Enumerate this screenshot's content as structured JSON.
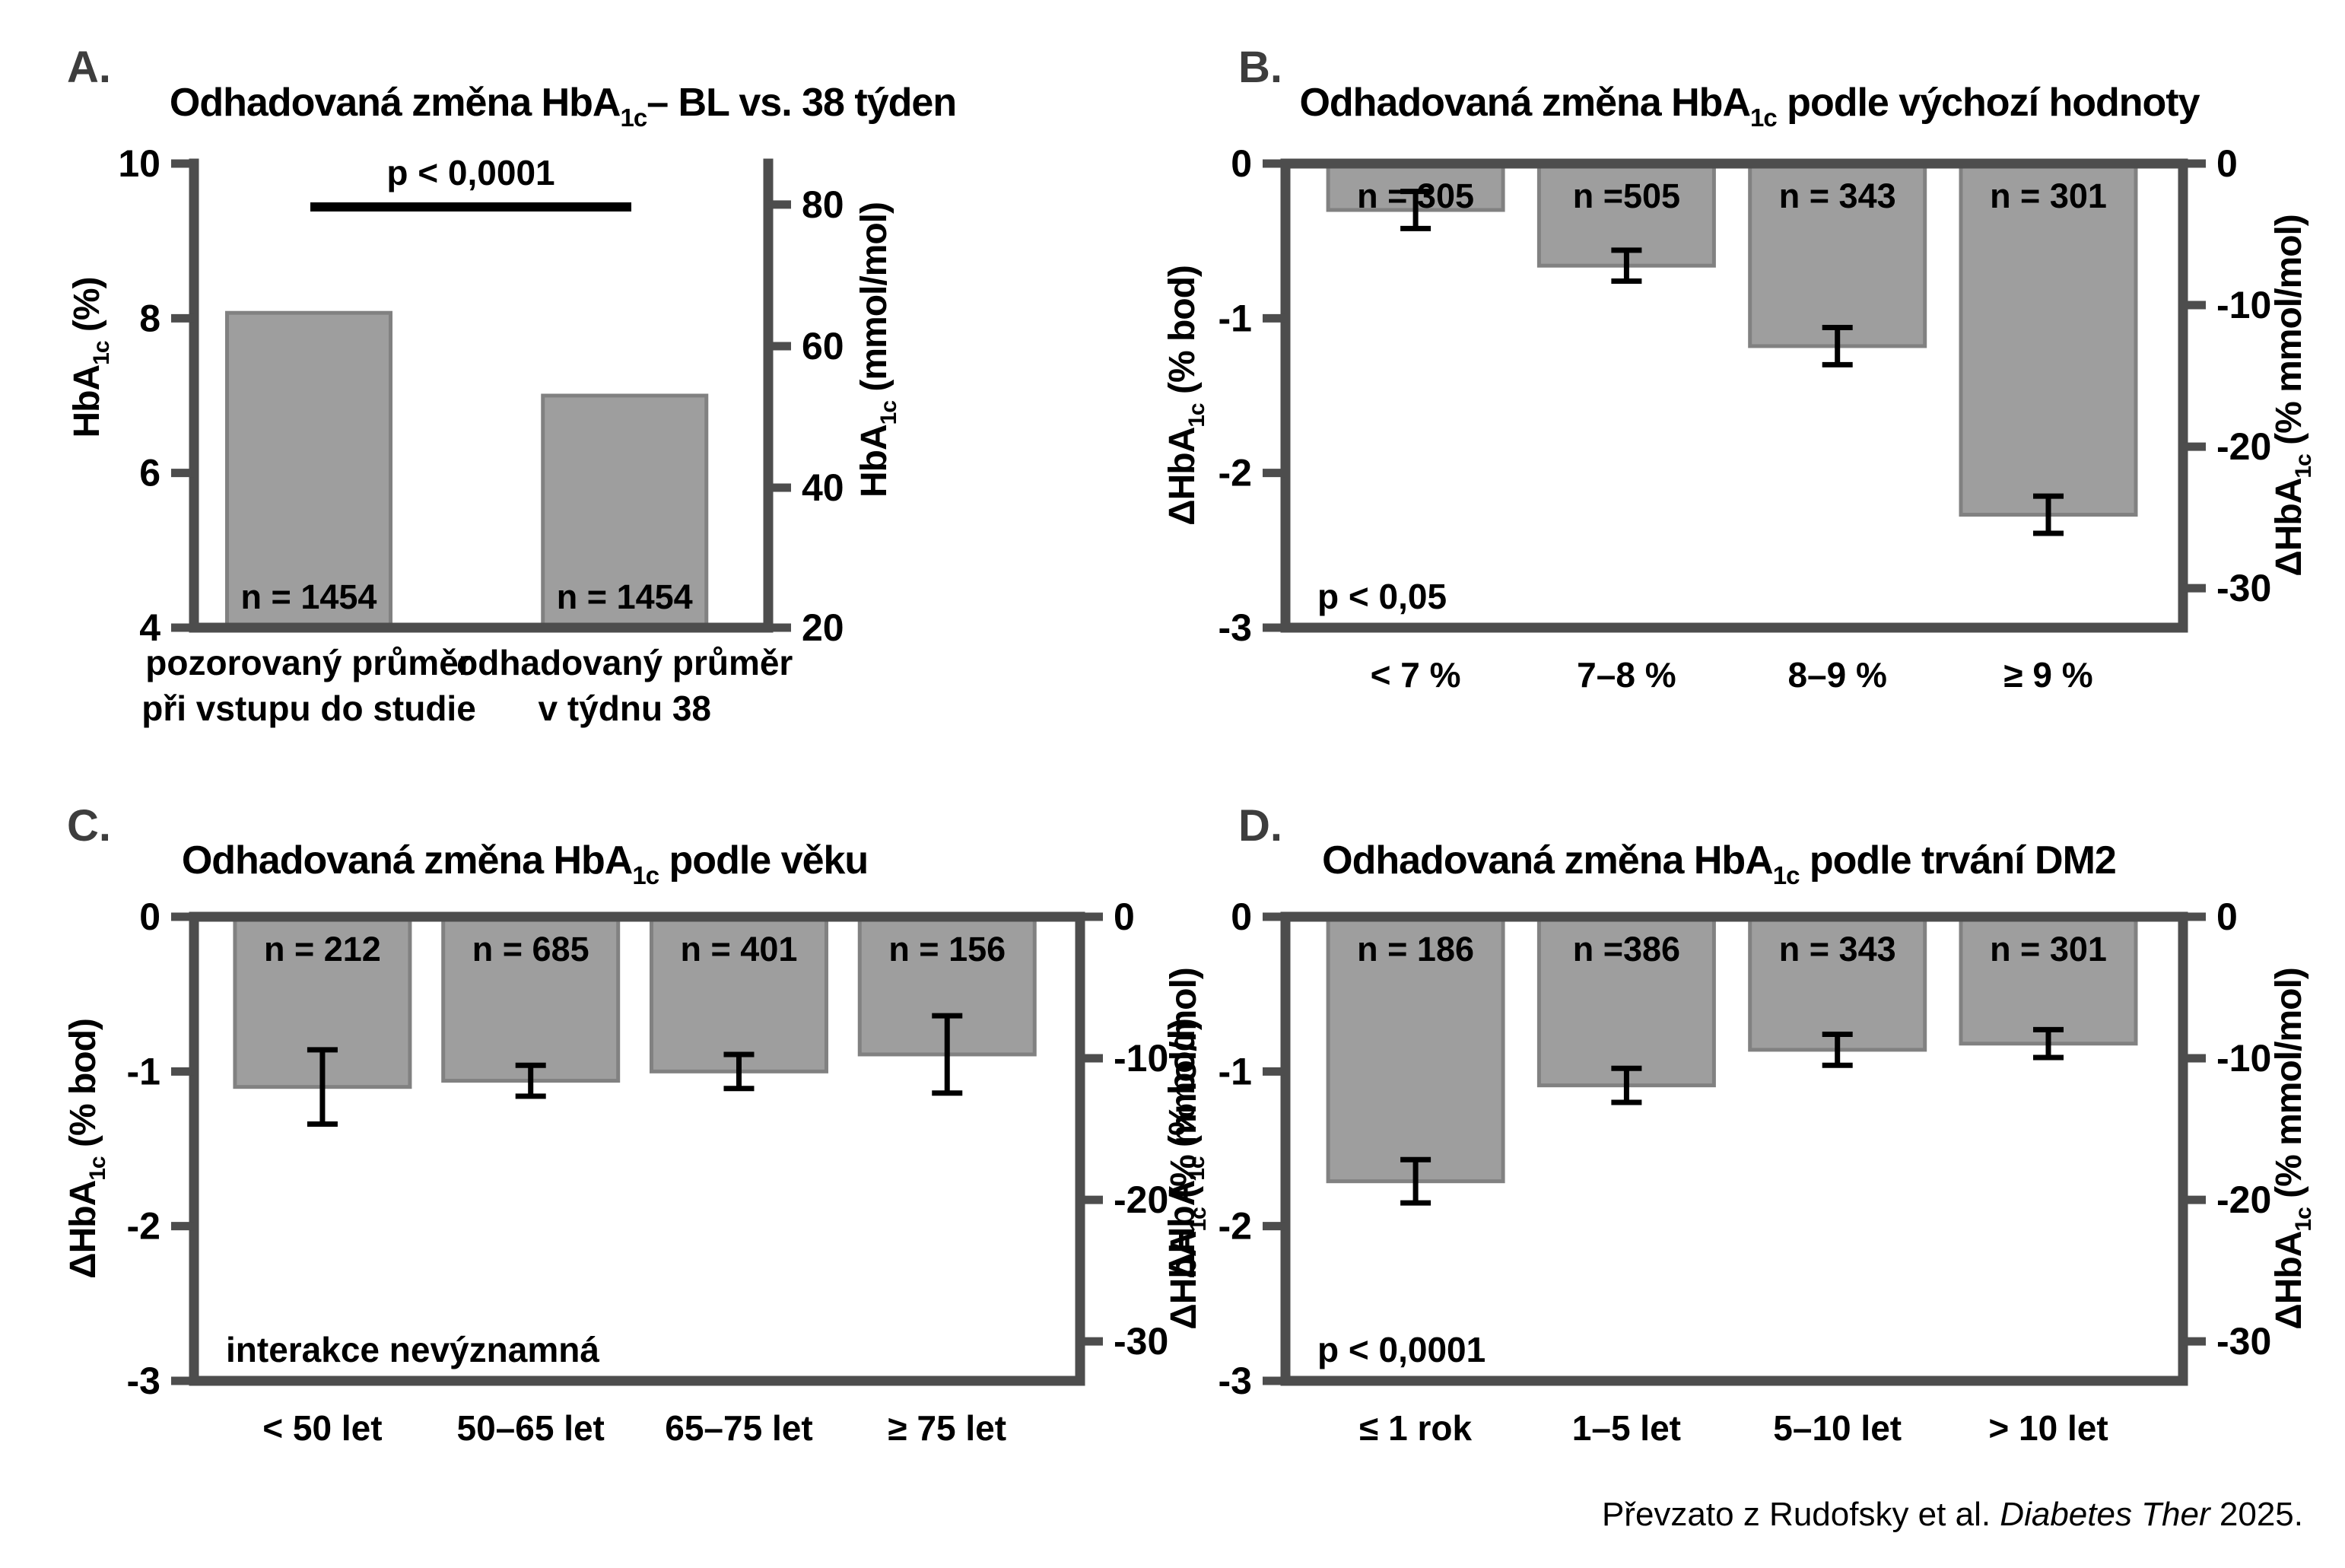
{
  "colors": {
    "bar_fill": "#9e9e9e",
    "bar_border": "#818181",
    "axis": "#4d4d4d",
    "text": "#000000",
    "panel_letter": "#3d3d3d",
    "error_bar": "#000000"
  },
  "footer": {
    "pre": "Převzato z Rudofsky et al. ",
    "italic": "Diabetes Ther",
    "post": " 2025."
  },
  "chart_data": [
    {
      "panel": "A",
      "letter": "A.",
      "type": "bar",
      "title": {
        "pre": "Odhadovaná změna HbA",
        "sub": "1c",
        "post": "– BL vs. 38 týden"
      },
      "ylabel_left": {
        "pre": "HbA",
        "sub": "1c",
        "post": " (%)"
      },
      "ylabel_right": {
        "pre": "HbA",
        "sub": "1c",
        "post": " (mmol/mol)"
      },
      "axes": {
        "delta": false,
        "left_min": 4,
        "left_max": 10,
        "left_ticks": [
          10,
          8,
          6,
          4
        ],
        "right_ticks_mmol": [
          80,
          60,
          40,
          20
        ]
      },
      "categories": [
        [
          "pozorovaný průměr",
          "při vstupu do studie"
        ],
        [
          "odhadovaný průměr",
          "v týdnu 38"
        ]
      ],
      "values": [
        8.07,
        7.0
      ],
      "errors": [],
      "n_labels": [
        "n = 1454",
        "n = 1454"
      ],
      "significance": {
        "label": "p < 0,0001",
        "bracket": true
      }
    },
    {
      "panel": "B",
      "letter": "B.",
      "type": "bar",
      "title": {
        "pre": "Odhadovaná změna HbA",
        "sub": "1c",
        "post": " podle výchozí hodnoty"
      },
      "ylabel_left": {
        "pre": "ΔHbA",
        "sub": "1c",
        "post": " (% bod)"
      },
      "ylabel_right": {
        "pre": "ΔHbA",
        "sub": "1c",
        "post": " (% mmol/mol)"
      },
      "axes": {
        "delta": true,
        "left_min": -3,
        "left_max": 0,
        "left_ticks": [
          0,
          -1,
          -2,
          -3
        ],
        "right_ticks_mmol": [
          0,
          -10,
          -20,
          -30
        ]
      },
      "categories": [
        "< 7 %",
        "7–8 %",
        "8–9 %",
        "≥ 9 %"
      ],
      "values": [
        -0.3,
        -0.66,
        -1.18,
        -2.27
      ],
      "errors": [
        0.12,
        0.1,
        0.12,
        0.12
      ],
      "n_labels": [
        "n = 305",
        "n =505",
        "n = 343",
        "n = 301"
      ],
      "annotation": "p < 0,05"
    },
    {
      "panel": "C",
      "letter": "C.",
      "type": "bar",
      "title": {
        "pre": "Odhadovaná změna HbA",
        "sub": "1c",
        "post": " podle věku"
      },
      "ylabel_left": {
        "pre": "ΔHbA",
        "sub": "1c",
        "post": " (% bod)"
      },
      "ylabel_right": {
        "pre": "ΔHbA",
        "sub": "1c",
        "post": " (% mmol/mol)"
      },
      "axes": {
        "delta": true,
        "left_min": -3,
        "left_max": 0,
        "left_ticks": [
          0,
          -1,
          -2,
          -3
        ],
        "right_ticks_mmol": [
          0,
          -10,
          -20,
          -30
        ]
      },
      "categories": [
        "< 50 let",
        "50–65 let",
        "65–75 let",
        "≥ 75 let"
      ],
      "values": [
        -1.1,
        -1.06,
        -1.0,
        -0.89
      ],
      "errors": [
        0.24,
        0.1,
        0.11,
        0.25
      ],
      "n_labels": [
        "n = 212",
        "n = 685",
        "n = 401",
        "n = 156"
      ],
      "annotation": "interakce nevýznamná"
    },
    {
      "panel": "D",
      "letter": "D.",
      "type": "bar",
      "title": {
        "pre": "Odhadovaná změna HbA",
        "sub": "1c",
        "post": " podle trvání DM2"
      },
      "ylabel_left": {
        "pre": "ΔHbA",
        "sub": "1c",
        "post": " (% bod)"
      },
      "ylabel_right": {
        "pre": "ΔHbA",
        "sub": "1c",
        "post": " (% mmol/mol)"
      },
      "axes": {
        "delta": true,
        "left_min": -3,
        "left_max": 0,
        "left_ticks": [
          0,
          -1,
          -2,
          -3
        ],
        "right_ticks_mmol": [
          0,
          -10,
          -20,
          -30
        ]
      },
      "categories": [
        "≤ 1 rok",
        "1–5 let",
        "5–10 let",
        "> 10 let"
      ],
      "values": [
        -1.71,
        -1.09,
        -0.86,
        -0.82
      ],
      "errors": [
        0.14,
        0.11,
        0.1,
        0.09
      ],
      "n_labels": [
        "n = 186",
        "n =386",
        "n = 343",
        "n = 301"
      ],
      "annotation": "p < 0,0001"
    }
  ]
}
